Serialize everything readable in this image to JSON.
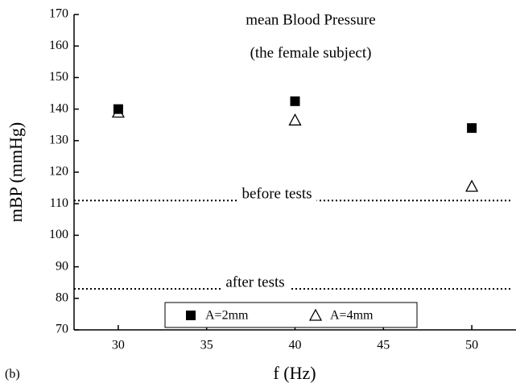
{
  "chart_data": {
    "type": "scatter",
    "annotations": [
      "mean Blood Pressure",
      "(the female subject)",
      "(b)"
    ],
    "xlabel": "f (Hz)",
    "ylabel": "mBP (mmHg)",
    "xlim": [
      27.5,
      52.5
    ],
    "xticks": [
      30,
      35,
      40,
      45,
      50
    ],
    "ylim": [
      70,
      170
    ],
    "yticks": [
      70,
      80,
      90,
      100,
      110,
      120,
      130,
      140,
      150,
      160,
      170
    ],
    "hlines": [
      {
        "value": 111,
        "label": "before tests"
      },
      {
        "value": 83,
        "label": "after tests"
      }
    ],
    "series": [
      {
        "name": "A=2mm",
        "color": "#000000",
        "marker": "square",
        "x": [
          30,
          40,
          50
        ],
        "values": [
          140,
          142.5,
          134
        ]
      },
      {
        "name": "A=4mm",
        "color": "#000000",
        "marker": "triangle",
        "x": [
          30,
          40,
          50
        ],
        "values": [
          139,
          136.5,
          115.5
        ]
      }
    ]
  }
}
